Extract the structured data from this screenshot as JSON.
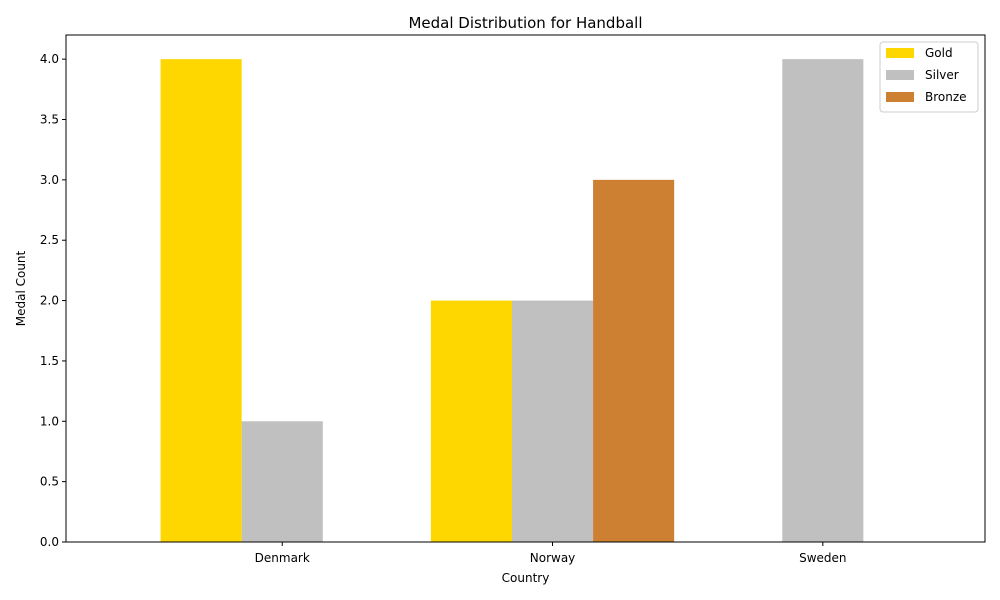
{
  "chart_data": {
    "type": "bar",
    "title": "Medal Distribution for Handball",
    "xlabel": "Country",
    "ylabel": "Medal Count",
    "categories": [
      "Denmark",
      "Norway",
      "Sweden"
    ],
    "series": [
      {
        "name": "Gold",
        "values": [
          4,
          2,
          0
        ],
        "color": "#FFD700"
      },
      {
        "name": "Silver",
        "values": [
          1,
          2,
          4
        ],
        "color": "#C0C0C0"
      },
      {
        "name": "Bronze",
        "values": [
          0,
          3,
          0
        ],
        "color": "#CD7F32"
      }
    ],
    "ylim": [
      0,
      4.2
    ],
    "yticks": [
      "0.0",
      "0.5",
      "1.0",
      "1.5",
      "2.0",
      "2.5",
      "3.0",
      "3.5",
      "4.0"
    ],
    "grid": false,
    "legend_position": "top-right"
  }
}
